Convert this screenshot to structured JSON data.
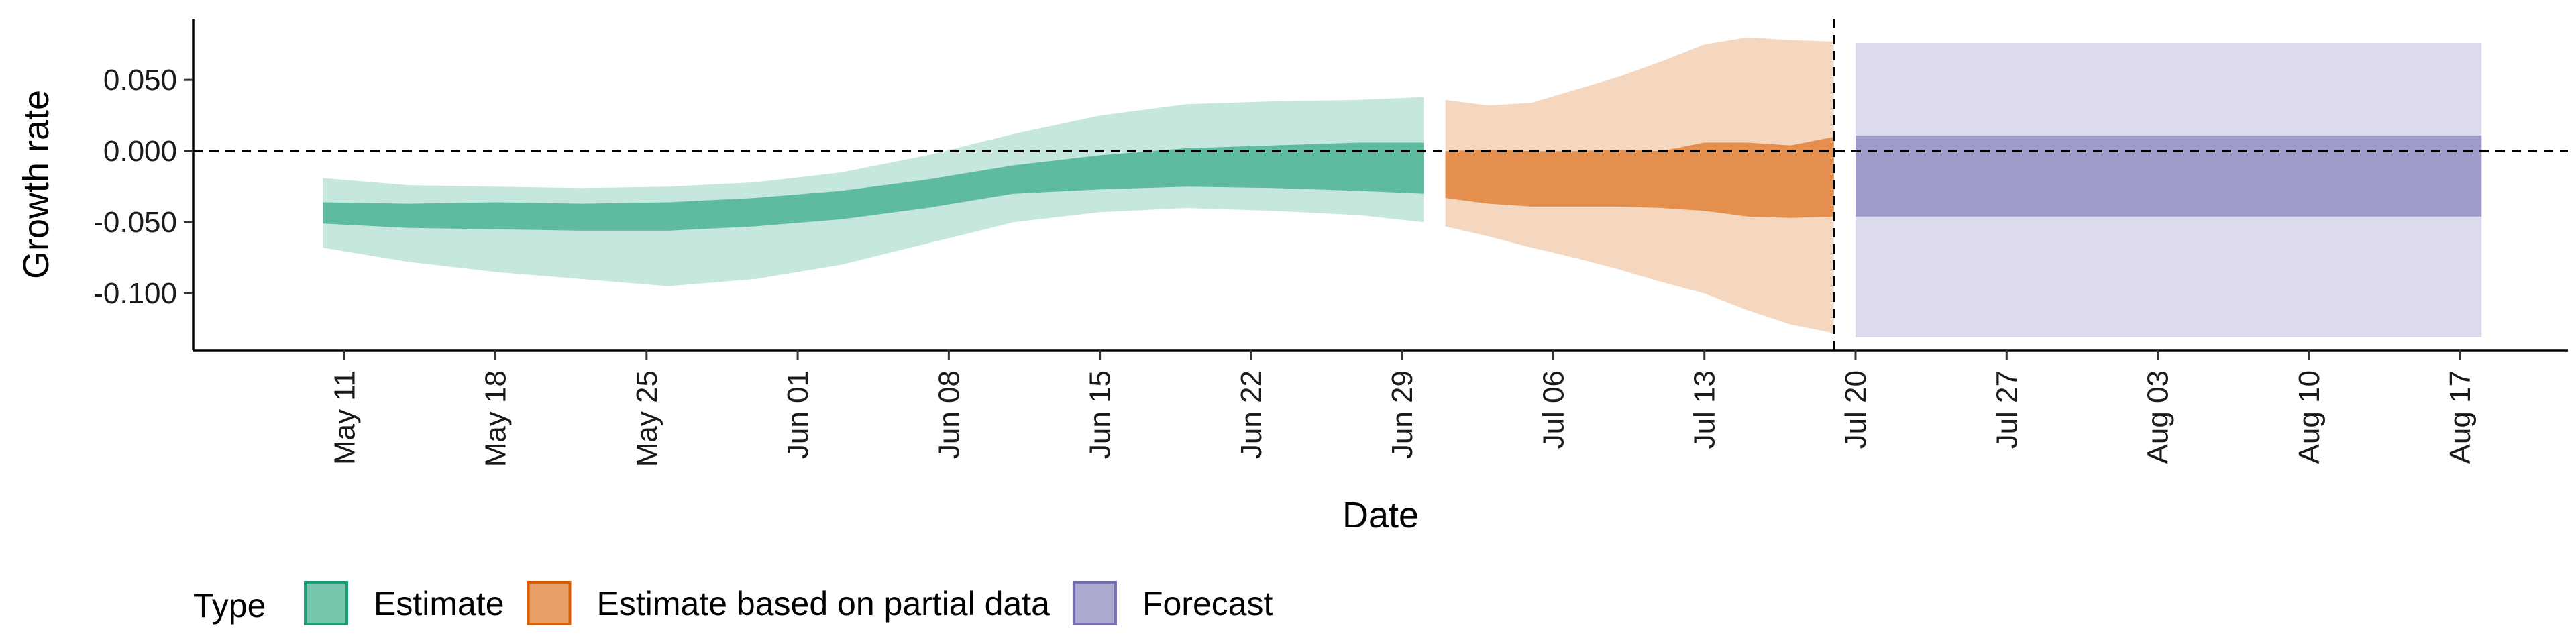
{
  "chart_data": {
    "type": "area",
    "xlabel": "Date",
    "ylabel": "Growth rate",
    "ylim": [
      -0.14,
      0.093
    ],
    "xlim": [
      "2020-05-04",
      "2020-08-22"
    ],
    "x_ticks": [
      "2020-05-11",
      "2020-05-18",
      "2020-05-25",
      "2020-06-01",
      "2020-06-08",
      "2020-06-15",
      "2020-06-22",
      "2020-06-29",
      "2020-07-06",
      "2020-07-13",
      "2020-07-20",
      "2020-07-27",
      "2020-08-03",
      "2020-08-10",
      "2020-08-17"
    ],
    "x_tick_labels": [
      "May 11",
      "May 18",
      "May 25",
      "Jun 01",
      "Jun 08",
      "Jun 15",
      "Jun 22",
      "Jun 29",
      "Jul 06",
      "Jul 13",
      "Jul 20",
      "Jul 27",
      "Aug 03",
      "Aug 10",
      "Aug 17"
    ],
    "y_ticks": [
      0.05,
      0.0,
      -0.05,
      -0.1
    ],
    "y_tick_labels": [
      "0.050",
      "0.000",
      "-0.050",
      "-0.100"
    ],
    "hline": 0,
    "vline": "2020-07-19",
    "legend": {
      "title": "Type",
      "position": "bottom-left"
    },
    "series": [
      {
        "name": "Estimate",
        "fill": "#1b9e77",
        "x": [
          "2020-05-10",
          "2020-05-14",
          "2020-05-18",
          "2020-05-22",
          "2020-05-26",
          "2020-05-30",
          "2020-06-03",
          "2020-06-07",
          "2020-06-11",
          "2020-06-15",
          "2020-06-19",
          "2020-06-23",
          "2020-06-27",
          "2020-06-30"
        ],
        "lower90": [
          -0.068,
          -0.078,
          -0.085,
          -0.09,
          -0.095,
          -0.09,
          -0.08,
          -0.065,
          -0.05,
          -0.043,
          -0.04,
          -0.042,
          -0.045,
          -0.05
        ],
        "lower50": [
          -0.051,
          -0.054,
          -0.055,
          -0.056,
          -0.056,
          -0.053,
          -0.048,
          -0.04,
          -0.03,
          -0.027,
          -0.025,
          -0.026,
          -0.028,
          -0.03
        ],
        "upper50": [
          -0.036,
          -0.037,
          -0.036,
          -0.037,
          -0.036,
          -0.033,
          -0.028,
          -0.02,
          -0.01,
          -0.003,
          0.002,
          0.004,
          0.006,
          0.006
        ],
        "upper90": [
          -0.019,
          -0.024,
          -0.025,
          -0.026,
          -0.025,
          -0.022,
          -0.015,
          -0.003,
          0.012,
          0.025,
          0.033,
          0.035,
          0.036,
          0.038
        ]
      },
      {
        "name": "Estimate based on partial data",
        "fill": "#d95f02",
        "x": [
          "2020-07-01",
          "2020-07-03",
          "2020-07-05",
          "2020-07-07",
          "2020-07-09",
          "2020-07-11",
          "2020-07-13",
          "2020-07-15",
          "2020-07-17",
          "2020-07-19"
        ],
        "lower90": [
          -0.053,
          -0.06,
          -0.068,
          -0.075,
          -0.083,
          -0.092,
          -0.1,
          -0.112,
          -0.122,
          -0.128
        ],
        "lower50": [
          -0.033,
          -0.037,
          -0.039,
          -0.039,
          -0.039,
          -0.04,
          -0.042,
          -0.046,
          -0.047,
          -0.046
        ],
        "upper50": [
          0.0,
          0.001,
          0.0,
          0.0,
          0.001,
          0.0,
          0.006,
          0.006,
          0.004,
          0.01
        ],
        "upper90": [
          0.036,
          0.032,
          0.034,
          0.043,
          0.052,
          0.063,
          0.075,
          0.08,
          0.078,
          0.077
        ]
      },
      {
        "name": "Forecast",
        "fill": "#7570b3",
        "x": [
          "2020-07-20",
          "2020-08-18"
        ],
        "lower90": [
          -0.131,
          -0.131
        ],
        "lower50": [
          -0.046,
          -0.046
        ],
        "upper50": [
          0.011,
          0.011
        ],
        "upper90": [
          0.076,
          0.076
        ]
      }
    ]
  }
}
